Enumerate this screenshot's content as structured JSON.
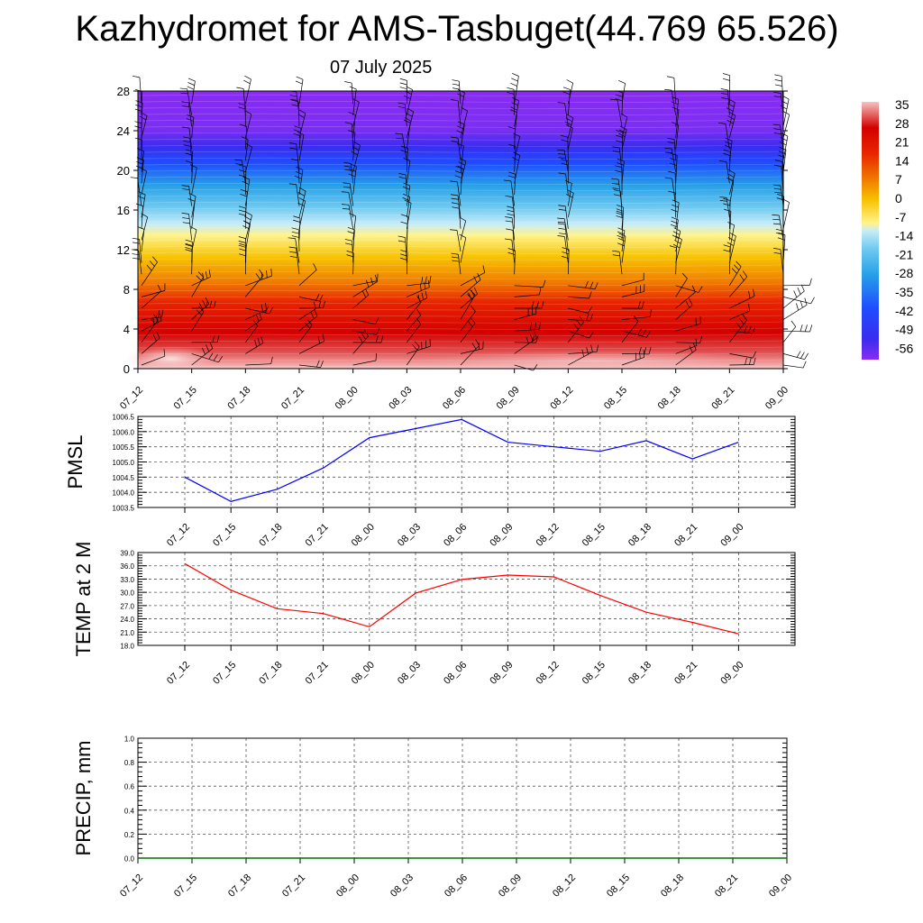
{
  "title": "Kazhydromet for AMS-Tasbuget(44.769 65.526)",
  "date": "07 July 2025",
  "chart_data": [
    {
      "type": "heatmap",
      "description_variable": "temperature cross-section with wind barbs",
      "x_tick_labels": [
        "07_12",
        "07_15",
        "07_18",
        "07_21",
        "08_00",
        "08_03",
        "08_06",
        "08_09",
        "08_12",
        "08_15",
        "08_18",
        "08_21",
        "09_00"
      ],
      "y_ticks": [
        0,
        4,
        8,
        12,
        16,
        20,
        24,
        28
      ],
      "ylim": [
        0,
        28
      ],
      "colorbar_labels": [
        "35",
        "28",
        "21",
        "14",
        "7",
        "0",
        "-7",
        "-14",
        "-21",
        "-28",
        "-35",
        "-42",
        "-49",
        "-56"
      ],
      "colorbar_range": [
        -60,
        37
      ],
      "colors": {
        "hot": "#f6c2c2",
        "red": "#d40000",
        "orange": "#f58a00",
        "yellow": "#fff38a",
        "lightblue": "#7fd0f2",
        "blue": "#1f4dff",
        "violet": "#8a2cf2"
      }
    },
    {
      "type": "line",
      "ylabel": "PMSL",
      "x": [
        "07_12",
        "07_15",
        "07_18",
        "07_21",
        "08_00",
        "08_03",
        "08_06",
        "08_09",
        "08_12",
        "08_15",
        "08_18",
        "08_21",
        "09_00"
      ],
      "values": [
        1004.5,
        1003.7,
        1004.1,
        1004.8,
        1005.8,
        1006.1,
        1006.4,
        1005.65,
        1005.5,
        1005.35,
        1005.7,
        1005.1,
        1005.65
      ],
      "ylim": [
        1003.5,
        1006.5
      ],
      "y_ticks": [
        "1003.5",
        "1004.0",
        "1004.5",
        "1005.0",
        "1005.5",
        "1006.0",
        "1006.5"
      ],
      "color": "#0000ff",
      "grid": true
    },
    {
      "type": "line",
      "ylabel": "TEMP at 2 M",
      "x": [
        "07_12",
        "07_15",
        "07_18",
        "07_21",
        "08_00",
        "08_03",
        "08_06",
        "08_09",
        "08_12",
        "08_15",
        "08_18",
        "08_21",
        "09_00"
      ],
      "values": [
        36.5,
        30.5,
        26.3,
        25.2,
        22.2,
        29.8,
        32.9,
        33.9,
        33.5,
        29.3,
        25.5,
        23.2,
        20.6
      ],
      "ylim": [
        18.0,
        39.0
      ],
      "y_ticks": [
        "18.0",
        "21.0",
        "24.0",
        "27.0",
        "30.0",
        "33.0",
        "36.0",
        "39.0"
      ],
      "color": "#ff0000",
      "grid": true
    },
    {
      "type": "line",
      "ylabel": "PRECIP, mm",
      "x": [
        "07_12",
        "07_15",
        "07_18",
        "07_21",
        "08_00",
        "08_03",
        "08_06",
        "08_09",
        "08_12",
        "08_15",
        "08_18",
        "08_21",
        "09_00"
      ],
      "values": [
        0,
        0,
        0,
        0,
        0,
        0,
        0,
        0,
        0,
        0,
        0,
        0,
        0
      ],
      "ylim": [
        0,
        1.0
      ],
      "y_ticks": [
        "0.0",
        "0.2",
        "0.4",
        "0.6",
        "0.8",
        "1.0"
      ],
      "color": "#007000",
      "grid": true
    }
  ]
}
